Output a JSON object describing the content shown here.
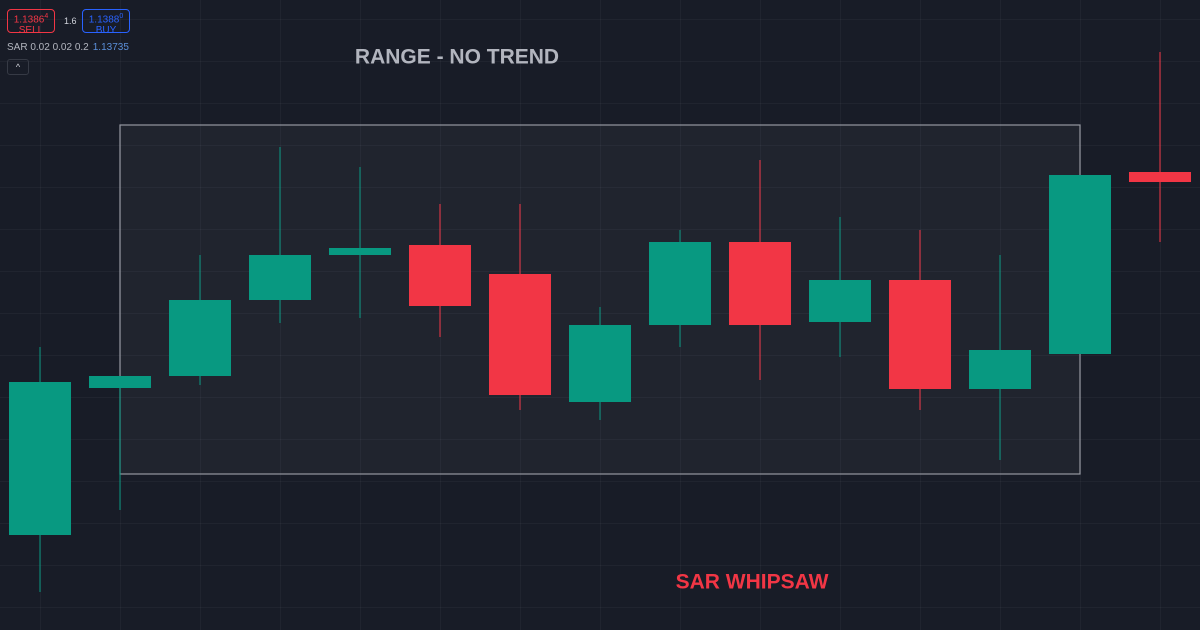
{
  "toolbar": {
    "sell": {
      "price": "1.1386",
      "pip": "4",
      "label": "SELL"
    },
    "spread": "1.6",
    "buy": {
      "price": "1.1388",
      "pip": "0",
      "label": "BUY"
    },
    "indicator": {
      "name": "SAR 0.02 0.02 0.2",
      "value": "1.13735"
    }
  },
  "chart_data": {
    "type": "candlestick",
    "annotations": [
      {
        "text": "RANGE - NO TREND",
        "color": "#b2b5be"
      },
      {
        "text": "SAR WHIPSAW",
        "color": "#f23645"
      }
    ],
    "open": [
      1.1319,
      1.13484,
      1.13508,
      1.1366,
      1.1375,
      1.1377,
      1.13712,
      1.13456,
      1.1361,
      1.13776,
      1.13616,
      1.137,
      1.13482,
      1.13552,
      1.13916
    ],
    "high": [
      1.13566,
      1.13508,
      1.1375,
      1.13966,
      1.13926,
      1.13852,
      1.13852,
      1.13646,
      1.138,
      1.1394,
      1.13826,
      1.138,
      1.1375,
      1.1391,
      1.14156
    ],
    "low": [
      1.13076,
      1.1324,
      1.1349,
      1.13614,
      1.13624,
      1.13586,
      1.1344,
      1.1342,
      1.13566,
      1.135,
      1.13546,
      1.1344,
      1.1334,
      1.13552,
      1.13776
    ],
    "close": [
      1.13496,
      1.13508,
      1.1366,
      1.1375,
      1.13764,
      1.13648,
      1.1347,
      1.1361,
      1.13776,
      1.1361,
      1.137,
      1.13482,
      1.1356,
      1.1391,
      1.13896
    ],
    "up_color": "#089981",
    "down_color": "#f23645",
    "ylim": [
      1.13,
      1.1426
    ]
  }
}
